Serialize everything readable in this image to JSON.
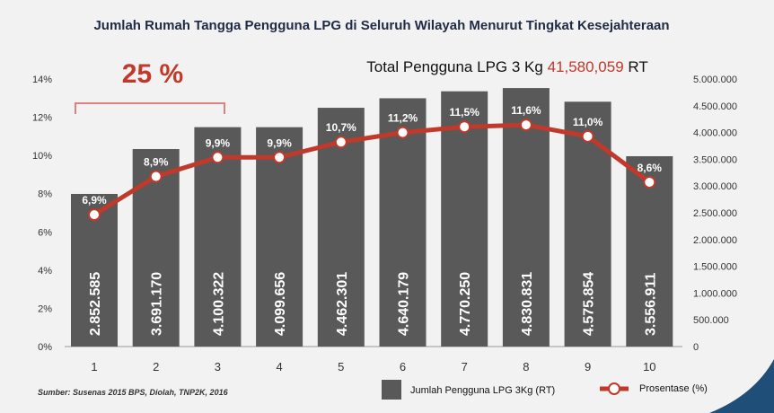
{
  "chart_data": {
    "type": "bar",
    "title": "Jumlah Rumah Tangga Pengguna LPG di Seluruh Wilayah Menurut Tingkat Kesejahteraan",
    "highlight": "25 %",
    "total_prefix": "Total Pengguna LPG 3 Kg",
    "total_value": "41,580,059",
    "total_suffix": "RT",
    "categories": [
      "1",
      "2",
      "3",
      "4",
      "5",
      "6",
      "7",
      "8",
      "9",
      "10"
    ],
    "series": [
      {
        "name": "Jumlah Pengguna LPG 3Kg (RT)",
        "type": "bar",
        "axis": "right",
        "values": [
          2852585,
          3691170,
          4100322,
          4099656,
          4462301,
          4640179,
          4770250,
          4830831,
          4575854,
          3556911
        ],
        "labels": [
          "2.852.585",
          "3.691.170",
          "4.100.322",
          "4.099.656",
          "4.462.301",
          "4.640.179",
          "4.770.250",
          "4.830.831",
          "4.575.854",
          "3.556.911"
        ]
      },
      {
        "name": "Prosentase (%)",
        "type": "line",
        "axis": "left",
        "values": [
          6.9,
          8.9,
          9.9,
          9.9,
          10.7,
          11.2,
          11.5,
          11.6,
          11.0,
          8.6
        ],
        "labels": [
          "6,9%",
          "8,9%",
          "9,9%",
          "9,9%",
          "10,7%",
          "11,2%",
          "11,5%",
          "11,6%",
          "11,0%",
          "8,6%"
        ]
      }
    ],
    "left_axis": {
      "ylim": [
        0,
        14
      ],
      "ticks": [
        "0%",
        "2%",
        "4%",
        "6%",
        "8%",
        "10%",
        "12%",
        "14%"
      ]
    },
    "right_axis": {
      "ylim": [
        0,
        5000000
      ],
      "ticks": [
        "0",
        "500.000",
        "1.000.000",
        "1.500.000",
        "2.000.000",
        "2.500.000",
        "3.000.000",
        "3.500.000",
        "4.000.000",
        "4.500.000",
        "5.000.000"
      ]
    },
    "legend": "bottom-right",
    "source": "Sumber: Susenas 2015 BPS, Diolah, TNP2K, 2016",
    "colors": {
      "bar": "#595959",
      "line": "#c0392b",
      "title": "#1f2a44",
      "accent": "#c0392b"
    }
  }
}
